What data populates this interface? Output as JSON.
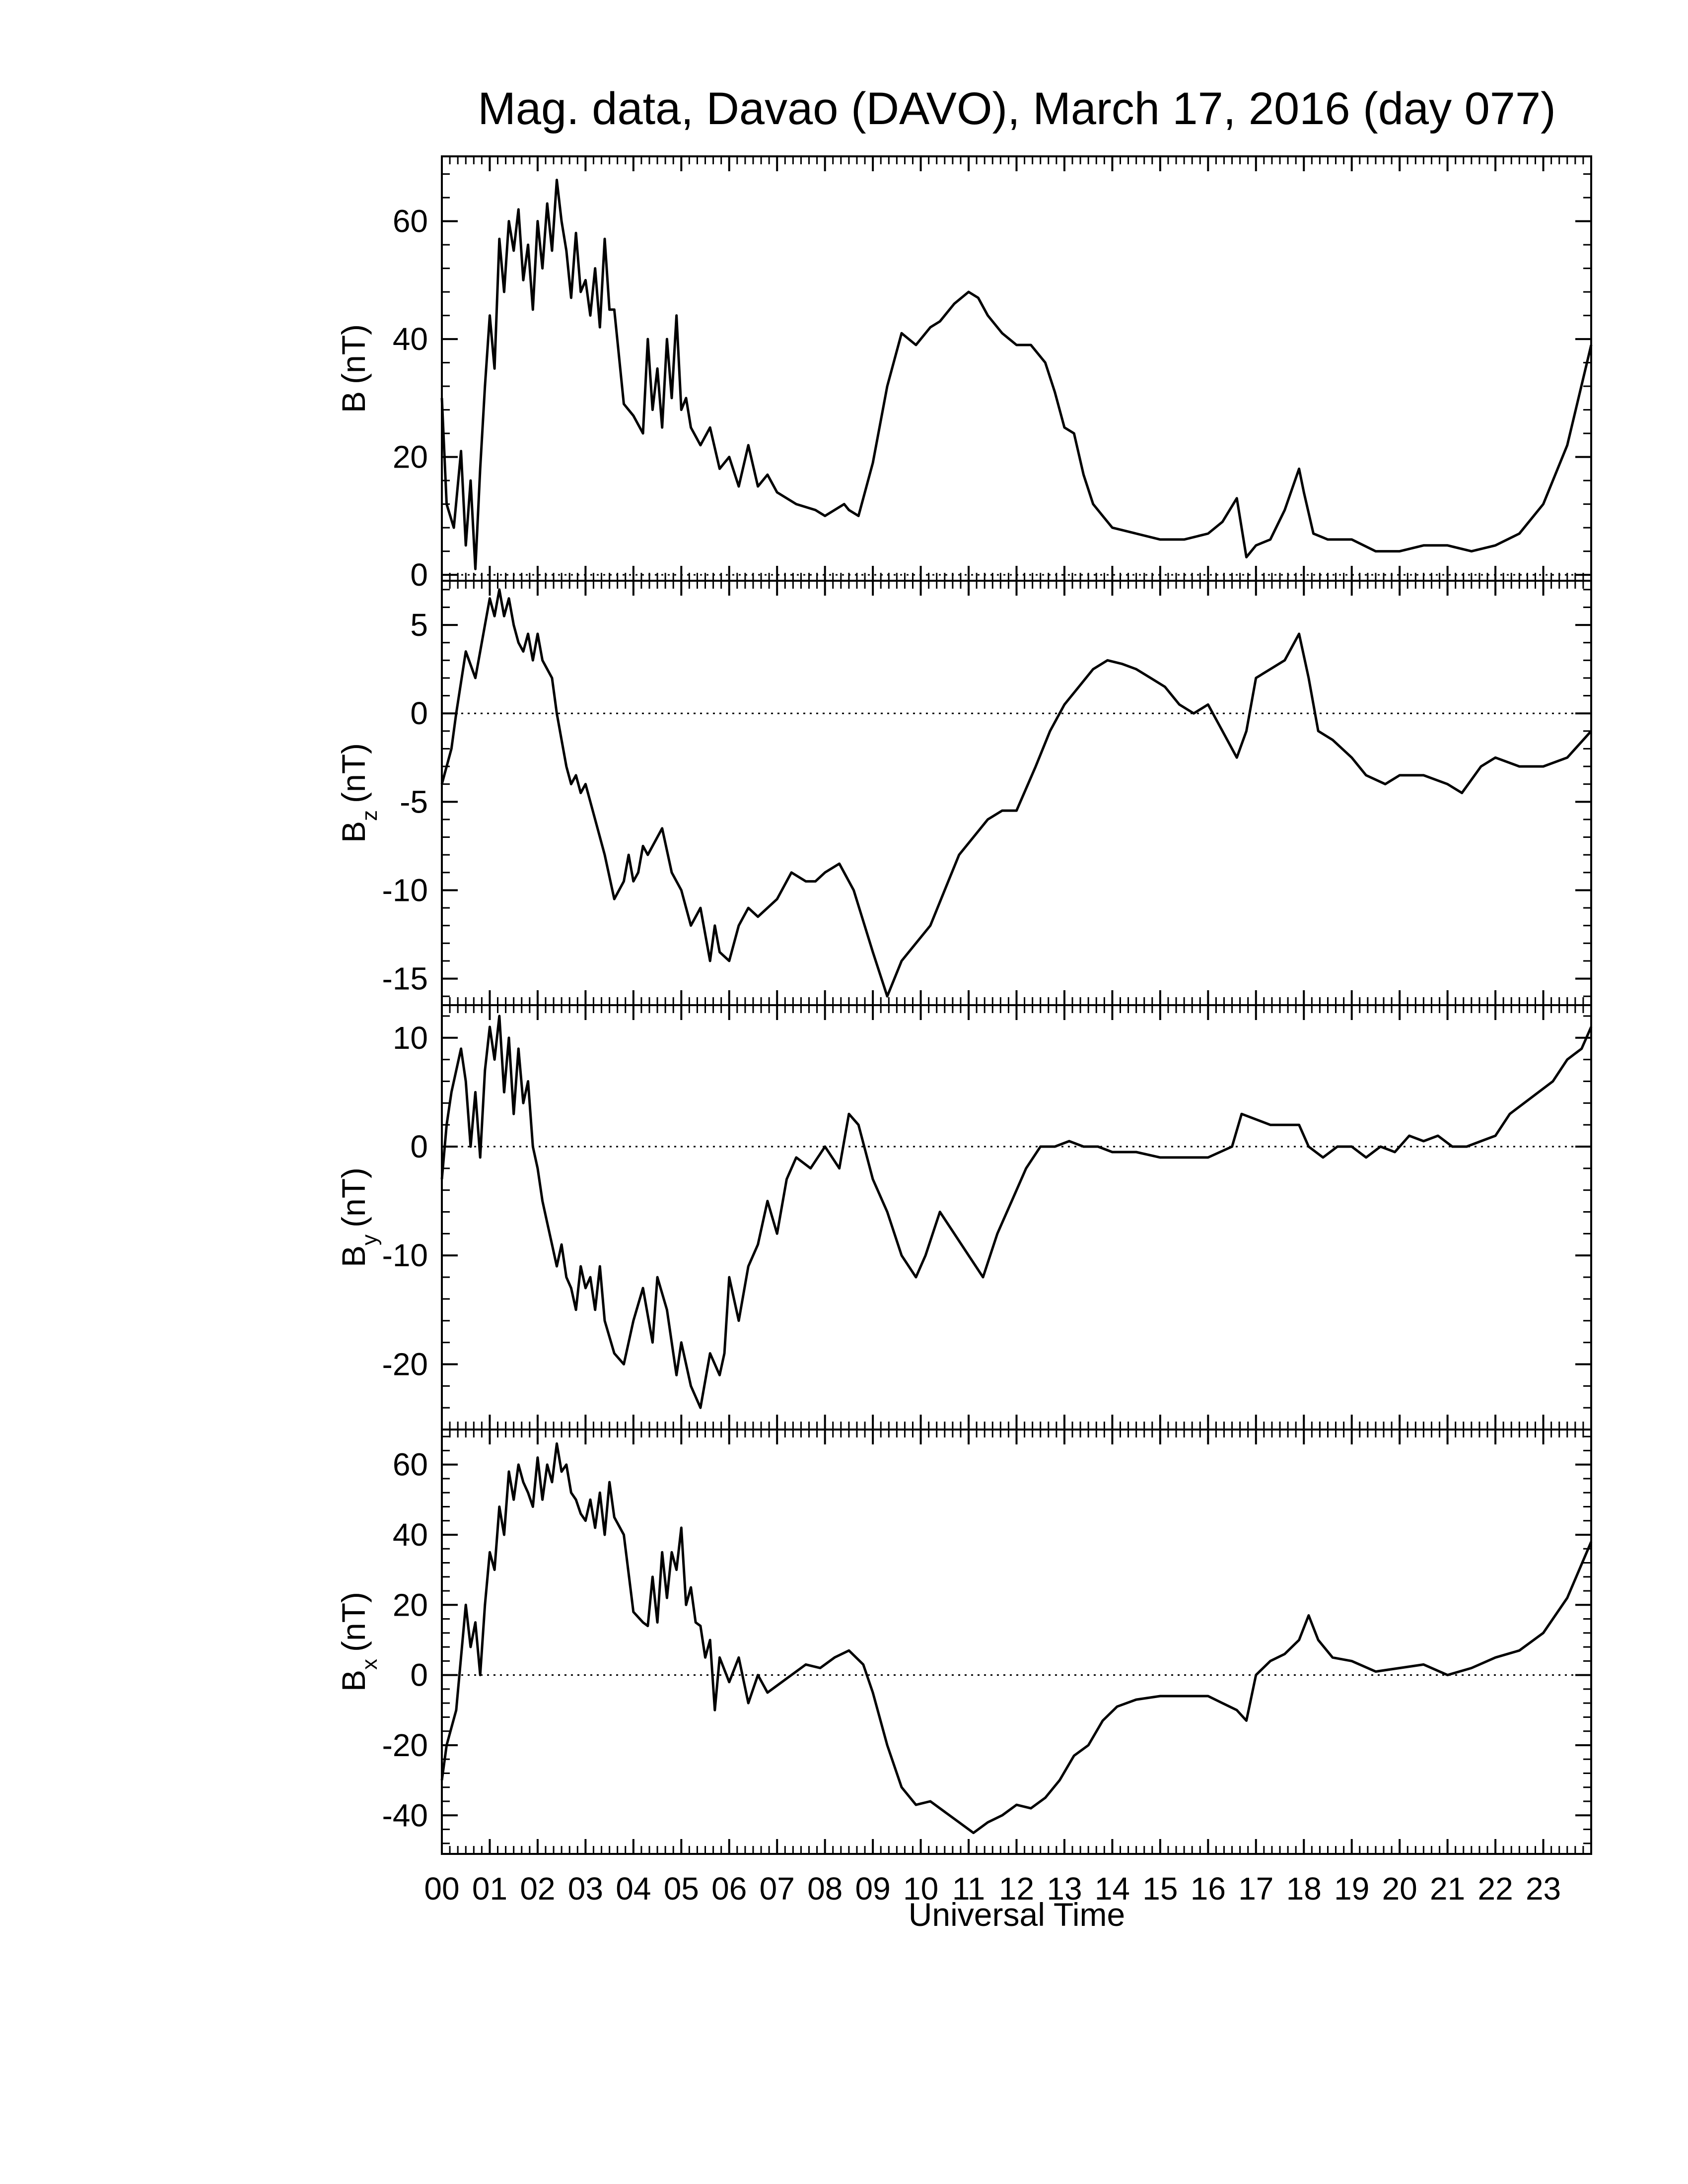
{
  "title": "Mag. data, Davao (DAVO), March 17, 2016 (day 077)",
  "colors": {
    "line": "#000000",
    "axis": "#000000",
    "zero_line": "#000000",
    "background": "#ffffff"
  },
  "chart_data": [
    {
      "type": "line",
      "ylabel": "B (nT)",
      "ylabel_base": "B",
      "ylabel_sub": "",
      "ylabel_unit": "(nT)",
      "ylim": [
        -1,
        71
      ],
      "yticks": [
        0,
        20,
        40,
        60
      ],
      "ytick_labels": [
        "0",
        "20",
        "40",
        "60"
      ],
      "zero_line": true,
      "xlim": [
        0,
        24
      ],
      "series": [
        {
          "x": [
            0.0,
            0.1,
            0.25,
            0.4,
            0.5,
            0.6,
            0.7,
            0.8,
            0.9,
            1.0,
            1.1,
            1.2,
            1.3,
            1.4,
            1.5,
            1.6,
            1.7,
            1.8,
            1.9,
            2.0,
            2.1,
            2.2,
            2.3,
            2.4,
            2.5,
            2.6,
            2.7,
            2.8,
            2.9,
            3.0,
            3.1,
            3.2,
            3.3,
            3.4,
            3.5,
            3.6,
            3.8,
            4.0,
            4.2,
            4.3,
            4.4,
            4.5,
            4.6,
            4.7,
            4.8,
            4.9,
            5.0,
            5.1,
            5.2,
            5.4,
            5.6,
            5.8,
            6.0,
            6.2,
            6.4,
            6.6,
            6.8,
            7.0,
            7.4,
            7.8,
            8.0,
            8.2,
            8.4,
            8.5,
            8.7,
            9.0,
            9.3,
            9.6,
            9.9,
            10.2,
            10.4,
            10.7,
            11.0,
            11.2,
            11.4,
            11.7,
            12.0,
            12.3,
            12.6,
            12.8,
            13.0,
            13.2,
            13.4,
            13.6,
            13.8,
            14.0,
            14.5,
            15.0,
            15.5,
            16.0,
            16.3,
            16.6,
            16.8,
            17.0,
            17.3,
            17.6,
            17.9,
            18.0,
            18.2,
            18.5,
            19.0,
            19.5,
            20.0,
            20.5,
            21.0,
            21.5,
            22.0,
            22.5,
            23.0,
            23.5,
            24.0
          ],
          "y": [
            30,
            12,
            8,
            21,
            5,
            16,
            1,
            18,
            32,
            44,
            35,
            57,
            48,
            60,
            55,
            62,
            50,
            56,
            45,
            60,
            52,
            63,
            55,
            67,
            60,
            55,
            47,
            58,
            48,
            50,
            44,
            52,
            42,
            57,
            45,
            45,
            29,
            27,
            24,
            40,
            28,
            35,
            25,
            40,
            30,
            44,
            28,
            30,
            25,
            22,
            25,
            18,
            20,
            15,
            22,
            15,
            17,
            14,
            12,
            11,
            10,
            11,
            12,
            11,
            10,
            19,
            32,
            41,
            39,
            42,
            43,
            46,
            48,
            47,
            44,
            41,
            39,
            39,
            36,
            31,
            25,
            24,
            17,
            12,
            10,
            8,
            7,
            6,
            6,
            7,
            9,
            13,
            3,
            5,
            6,
            11,
            18,
            14,
            7,
            6,
            6,
            4,
            4,
            5,
            5,
            4,
            5,
            7,
            12,
            22,
            39
          ]
        }
      ]
    },
    {
      "type": "line",
      "ylabel": "Bz (nT)",
      "ylabel_base": "B",
      "ylabel_sub": "z",
      "ylabel_unit": "(nT)",
      "ylim": [
        -16.5,
        7.5
      ],
      "yticks": [
        -15,
        -10,
        -5,
        0,
        5
      ],
      "ytick_labels": [
        "-15",
        "-10",
        "-5",
        "0",
        "5"
      ],
      "zero_line": true,
      "xlim": [
        0,
        24
      ],
      "series": [
        {
          "x": [
            0.0,
            0.2,
            0.3,
            0.5,
            0.7,
            0.8,
            0.9,
            1.0,
            1.1,
            1.2,
            1.3,
            1.4,
            1.5,
            1.6,
            1.7,
            1.8,
            1.9,
            2.0,
            2.1,
            2.2,
            2.3,
            2.4,
            2.5,
            2.6,
            2.7,
            2.8,
            2.9,
            3.0,
            3.2,
            3.4,
            3.6,
            3.8,
            3.9,
            4.0,
            4.1,
            4.2,
            4.3,
            4.4,
            4.6,
            4.8,
            5.0,
            5.2,
            5.4,
            5.6,
            5.7,
            5.8,
            6.0,
            6.2,
            6.4,
            6.6,
            6.8,
            7.0,
            7.3,
            7.6,
            7.8,
            8.0,
            8.3,
            8.6,
            9.0,
            9.3,
            9.6,
            9.9,
            10.2,
            10.5,
            10.8,
            11.1,
            11.4,
            11.7,
            12.0,
            12.4,
            12.7,
            13.0,
            13.3,
            13.6,
            13.9,
            14.2,
            14.5,
            14.8,
            15.1,
            15.4,
            15.7,
            16.0,
            16.3,
            16.6,
            16.8,
            17.0,
            17.3,
            17.6,
            17.9,
            18.1,
            18.3,
            18.6,
            19.0,
            19.3,
            19.7,
            20.0,
            20.5,
            21.0,
            21.3,
            21.7,
            22.0,
            22.5,
            23.0,
            23.5,
            24.0
          ],
          "y": [
            -4,
            -2,
            0,
            3.5,
            2,
            3.5,
            5,
            6.5,
            5.5,
            7,
            5.5,
            6.5,
            5,
            4,
            3.5,
            4.5,
            3,
            4.5,
            3,
            2.5,
            2,
            0,
            -1.5,
            -3,
            -4,
            -3.5,
            -4.5,
            -4,
            -6,
            -8,
            -10.5,
            -9.5,
            -8,
            -9.5,
            -9,
            -7.5,
            -8,
            -7.5,
            -6.5,
            -9,
            -10,
            -12,
            -11,
            -14,
            -12,
            -13.5,
            -14,
            -12,
            -11,
            -11.5,
            -11,
            -10.5,
            -9,
            -9.5,
            -9.5,
            -9,
            -8.5,
            -10,
            -13.5,
            -16,
            -14,
            -13,
            -12,
            -10,
            -8,
            -7,
            -6,
            -5.5,
            -5.5,
            -3,
            -1,
            0.5,
            1.5,
            2.5,
            3,
            2.8,
            2.5,
            2,
            1.5,
            0.5,
            0,
            0.5,
            -1,
            -2.5,
            -1,
            2,
            2.5,
            3,
            4.5,
            2,
            -1,
            -1.5,
            -2.5,
            -3.5,
            -4,
            -3.5,
            -3.5,
            -4,
            -4.5,
            -3,
            -2.5,
            -3,
            -3,
            -2.5,
            -1
          ]
        }
      ]
    },
    {
      "type": "line",
      "ylabel": "By (nT)",
      "ylabel_base": "B",
      "ylabel_sub": "y",
      "ylabel_unit": "(nT)",
      "ylim": [
        -26,
        13
      ],
      "yticks": [
        -20,
        -10,
        0,
        10
      ],
      "ytick_labels": [
        "-20",
        "-10",
        "0",
        "10"
      ],
      "zero_line": true,
      "xlim": [
        0,
        24
      ],
      "series": [
        {
          "x": [
            0.0,
            0.1,
            0.2,
            0.4,
            0.5,
            0.6,
            0.7,
            0.8,
            0.9,
            1.0,
            1.1,
            1.2,
            1.3,
            1.4,
            1.5,
            1.6,
            1.7,
            1.8,
            1.9,
            2.0,
            2.1,
            2.2,
            2.3,
            2.4,
            2.5,
            2.6,
            2.7,
            2.8,
            2.9,
            3.0,
            3.1,
            3.2,
            3.3,
            3.4,
            3.6,
            3.8,
            4.0,
            4.2,
            4.4,
            4.5,
            4.7,
            4.9,
            5.0,
            5.2,
            5.4,
            5.6,
            5.8,
            5.9,
            6.0,
            6.2,
            6.4,
            6.6,
            6.8,
            7.0,
            7.2,
            7.4,
            7.7,
            8.0,
            8.3,
            8.5,
            8.7,
            9.0,
            9.3,
            9.6,
            9.9,
            10.1,
            10.4,
            10.7,
            11.0,
            11.3,
            11.6,
            11.9,
            12.2,
            12.5,
            12.8,
            13.1,
            13.4,
            13.7,
            14.0,
            14.5,
            15.0,
            15.5,
            16.0,
            16.5,
            16.7,
            17.0,
            17.3,
            17.6,
            17.9,
            18.1,
            18.4,
            18.7,
            19.0,
            19.3,
            19.6,
            19.9,
            20.2,
            20.5,
            20.8,
            21.1,
            21.4,
            21.7,
            22.0,
            22.3,
            22.6,
            22.9,
            23.2,
            23.5,
            23.8,
            24.0
          ],
          "y": [
            -3,
            2,
            5,
            9,
            6,
            0,
            5,
            -1,
            7,
            11,
            8,
            12,
            5,
            10,
            3,
            9,
            4,
            6,
            0,
            -2,
            -5,
            -7,
            -9,
            -11,
            -9,
            -12,
            -13,
            -15,
            -11,
            -13,
            -12,
            -15,
            -11,
            -16,
            -19,
            -20,
            -16,
            -13,
            -18,
            -12,
            -15,
            -21,
            -18,
            -22,
            -24,
            -19,
            -21,
            -19,
            -12,
            -16,
            -11,
            -9,
            -5,
            -8,
            -3,
            -1,
            -2,
            0,
            -2,
            3,
            2,
            -3,
            -6,
            -10,
            -12,
            -10,
            -6,
            -8,
            -10,
            -12,
            -8,
            -5,
            -2,
            0,
            0,
            0.5,
            0,
            0,
            -0.5,
            -0.5,
            -1,
            -1,
            -1,
            0,
            3,
            2.5,
            2,
            2,
            2,
            0,
            -1,
            0,
            0,
            -1,
            0,
            -0.5,
            1,
            0.5,
            1,
            0,
            0,
            0.5,
            1,
            3,
            4,
            5,
            6,
            8,
            9,
            11
          ]
        }
      ]
    },
    {
      "type": "line",
      "ylabel": "Bx (nT)",
      "ylabel_base": "B",
      "ylabel_sub": "x",
      "ylabel_unit": "(nT)",
      "ylim": [
        -51,
        70
      ],
      "yticks": [
        -40,
        -20,
        0,
        20,
        40,
        60
      ],
      "ytick_labels": [
        "-40",
        "-20",
        "0",
        "20",
        "40",
        "60"
      ],
      "zero_line": true,
      "xlim": [
        0,
        24
      ],
      "series": [
        {
          "x": [
            0.0,
            0.1,
            0.3,
            0.5,
            0.6,
            0.7,
            0.8,
            0.9,
            1.0,
            1.1,
            1.2,
            1.3,
            1.4,
            1.5,
            1.6,
            1.7,
            1.8,
            1.9,
            2.0,
            2.1,
            2.2,
            2.3,
            2.4,
            2.5,
            2.6,
            2.7,
            2.8,
            2.9,
            3.0,
            3.1,
            3.2,
            3.3,
            3.4,
            3.5,
            3.6,
            3.8,
            4.0,
            4.2,
            4.3,
            4.4,
            4.5,
            4.6,
            4.7,
            4.8,
            4.9,
            5.0,
            5.1,
            5.2,
            5.3,
            5.4,
            5.5,
            5.6,
            5.7,
            5.8,
            6.0,
            6.2,
            6.4,
            6.6,
            6.8,
            7.0,
            7.3,
            7.6,
            7.9,
            8.2,
            8.5,
            8.8,
            9.0,
            9.3,
            9.6,
            9.9,
            10.2,
            10.5,
            10.8,
            11.1,
            11.4,
            11.7,
            12.0,
            12.3,
            12.6,
            12.9,
            13.2,
            13.5,
            13.8,
            14.1,
            14.5,
            15.0,
            15.5,
            16.0,
            16.3,
            16.6,
            16.8,
            17.0,
            17.3,
            17.6,
            17.9,
            18.1,
            18.3,
            18.6,
            19.0,
            19.5,
            20.0,
            20.5,
            21.0,
            21.5,
            22.0,
            22.5,
            23.0,
            23.5,
            24.0
          ],
          "y": [
            -30,
            -20,
            -10,
            20,
            8,
            15,
            0,
            20,
            35,
            30,
            48,
            40,
            58,
            50,
            60,
            55,
            52,
            48,
            62,
            50,
            60,
            55,
            66,
            58,
            60,
            52,
            50,
            46,
            44,
            50,
            42,
            52,
            40,
            55,
            45,
            40,
            18,
            15,
            14,
            28,
            15,
            35,
            22,
            35,
            30,
            42,
            20,
            25,
            15,
            14,
            5,
            10,
            -10,
            5,
            -2,
            5,
            -8,
            0,
            -5,
            -3,
            0,
            3,
            2,
            5,
            7,
            3,
            -5,
            -20,
            -32,
            -37,
            -36,
            -39,
            -42,
            -45,
            -42,
            -40,
            -37,
            -38,
            -35,
            -30,
            -23,
            -20,
            -13,
            -9,
            -7,
            -6,
            -6,
            -6,
            -8,
            -10,
            -13,
            0,
            4,
            6,
            10,
            17,
            10,
            5,
            4,
            1,
            2,
            3,
            0,
            2,
            5,
            7,
            12,
            22,
            38
          ]
        }
      ]
    }
  ],
  "x_tick_labels": [
    "00",
    "01",
    "02",
    "03",
    "04",
    "05",
    "06",
    "07",
    "08",
    "09",
    "10",
    "11",
    "12",
    "13",
    "14",
    "15",
    "16",
    "17",
    "18",
    "19",
    "20",
    "21",
    "22",
    "23"
  ],
  "xlabel": "Universal Time"
}
